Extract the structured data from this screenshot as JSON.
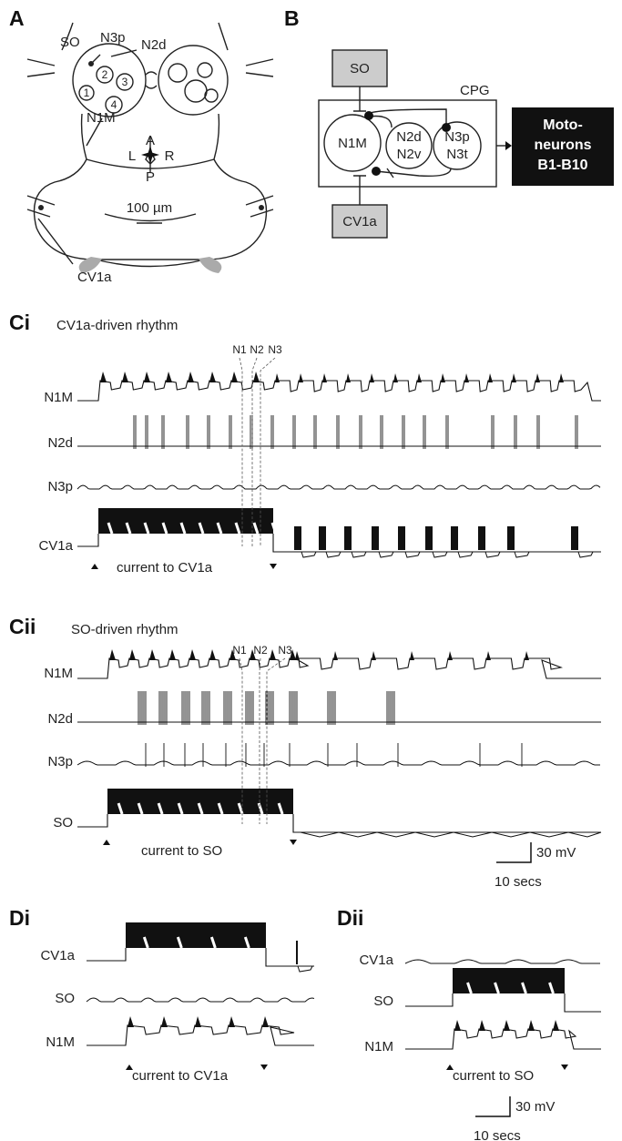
{
  "panel_a": {
    "label": "A",
    "so": "SO",
    "n3p": "N3p",
    "n2d": "N2d",
    "n1m": "N1M",
    "cv1a": "CV1a",
    "neurons": [
      "1",
      "2",
      "3",
      "4"
    ],
    "orientation": {
      "anterior": "A",
      "left": "L",
      "right": "R",
      "posterior": "P"
    },
    "scale": "100 µm"
  },
  "panel_b": {
    "label": "B",
    "so": "SO",
    "cpg": "CPG",
    "n1m": "N1M",
    "n2": [
      "N2d",
      "N2v"
    ],
    "n3": [
      "N3p",
      "N3t"
    ],
    "motoneurons": [
      "Moto-",
      "neurons",
      "B1-B10"
    ],
    "cv1a": "CV1a"
  },
  "panel_ci": {
    "label": "Ci",
    "title": "CV1a-driven rhythm",
    "markers": [
      "N1",
      "N2",
      "N3"
    ],
    "traces": [
      "N1M",
      "N2d",
      "N3p",
      "CV1a"
    ],
    "stimulus": "current to CV1a"
  },
  "panel_cii": {
    "label": "Cii",
    "title": "SO-driven rhythm",
    "markers": [
      "N1",
      "N2",
      "N3"
    ],
    "traces": [
      "N1M",
      "N2d",
      "N3p",
      "SO"
    ],
    "stimulus": "current to SO",
    "scale_v": "30 mV",
    "scale_t": "10 secs"
  },
  "panel_di": {
    "label": "Di",
    "traces": [
      "CV1a",
      "SO",
      "N1M"
    ],
    "stimulus": "current to CV1a"
  },
  "panel_dii": {
    "label": "Dii",
    "traces": [
      "CV1a",
      "SO",
      "N1M"
    ],
    "stimulus": "current to SO",
    "scale_v": "30 mV",
    "scale_t": "10 secs"
  }
}
